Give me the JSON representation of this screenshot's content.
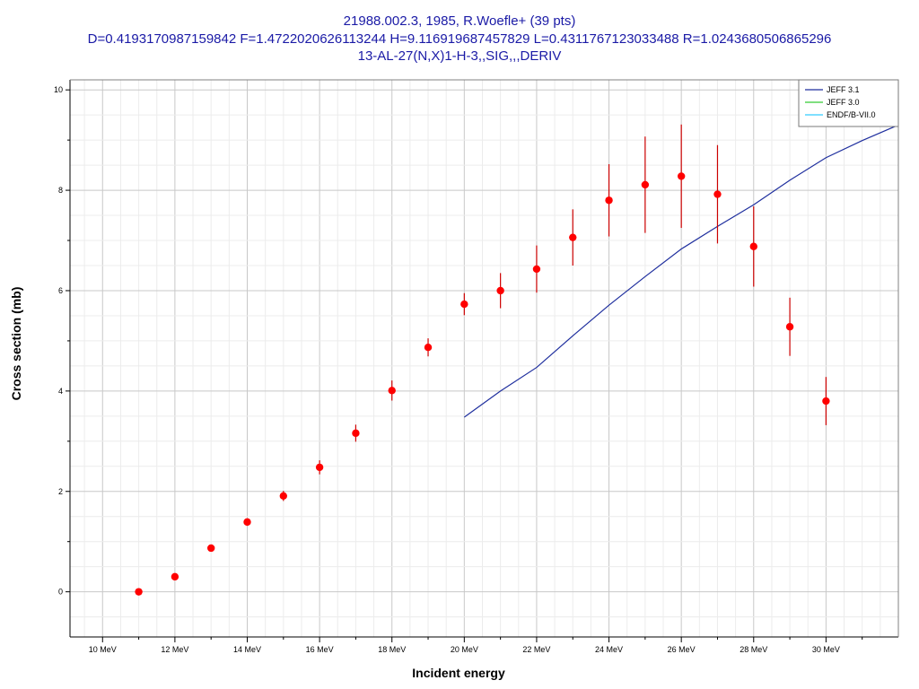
{
  "title": {
    "line1": "21988.002.3, 1985, R.Woefle+ (39 pts)",
    "line2": "D=0.4193170987159842 F=1.4722020626113244 H=9.116919687457829 L=0.4311767123033488 R=1.0243680506865296",
    "line3": "13-AL-27(N,X)1-H-3,,SIG,,,DERIV"
  },
  "chart_data": {
    "type": "scatter",
    "xlabel": "Incident energy",
    "ylabel": "Cross section (mb)",
    "xlim": [
      9.1,
      32
    ],
    "ylim": [
      -0.9,
      10.2
    ],
    "x_ticks": [
      10,
      12,
      14,
      16,
      18,
      20,
      22,
      24,
      26,
      28,
      30
    ],
    "x_tick_labels": [
      "10 MeV",
      "12 MeV",
      "14 MeV",
      "16 MeV",
      "18 MeV",
      "20 MeV",
      "22 MeV",
      "24 MeV",
      "26 MeV",
      "28 MeV",
      "30 MeV"
    ],
    "y_ticks": [
      0,
      2,
      4,
      6,
      8,
      10
    ],
    "y_tick_labels": [
      "0",
      "2",
      "4",
      "6",
      "8",
      "10"
    ],
    "grid": true,
    "legend_position": "top-right",
    "series": [
      {
        "name": "JEFF 3.1",
        "kind": "line",
        "color": "#1f2f9e",
        "x": [
          20,
          21,
          22,
          23,
          24,
          25,
          26,
          27,
          28,
          29,
          30,
          31,
          32
        ],
        "y": [
          3.48,
          4.0,
          4.47,
          5.1,
          5.71,
          6.28,
          6.83,
          7.28,
          7.71,
          8.2,
          8.65,
          8.99,
          9.3
        ]
      },
      {
        "name": "JEFF 3.0",
        "kind": "line",
        "color": "#33cc33",
        "x": [],
        "y": []
      },
      {
        "name": "ENDF/B-VII.0",
        "kind": "line",
        "color": "#33ccff",
        "x": [],
        "y": []
      },
      {
        "name": "",
        "kind": "points",
        "color": "#ff0000",
        "errorbar_color": "#cc0000",
        "x": [
          11,
          12,
          13,
          14,
          15,
          16,
          17,
          18,
          19,
          20,
          21,
          22,
          23,
          24,
          25,
          26,
          27,
          28,
          29,
          30
        ],
        "y": [
          0.0,
          0.3,
          0.87,
          1.39,
          1.91,
          2.48,
          3.16,
          4.01,
          4.87,
          5.73,
          6.0,
          6.43,
          7.06,
          7.8,
          8.11,
          8.28,
          7.92,
          6.88,
          5.28,
          3.8
        ],
        "err": [
          0.0,
          0.03,
          0.05,
          0.07,
          0.1,
          0.14,
          0.17,
          0.2,
          0.18,
          0.22,
          0.35,
          0.47,
          0.56,
          0.72,
          0.96,
          1.03,
          0.98,
          0.8,
          0.58,
          0.48
        ]
      }
    ]
  }
}
